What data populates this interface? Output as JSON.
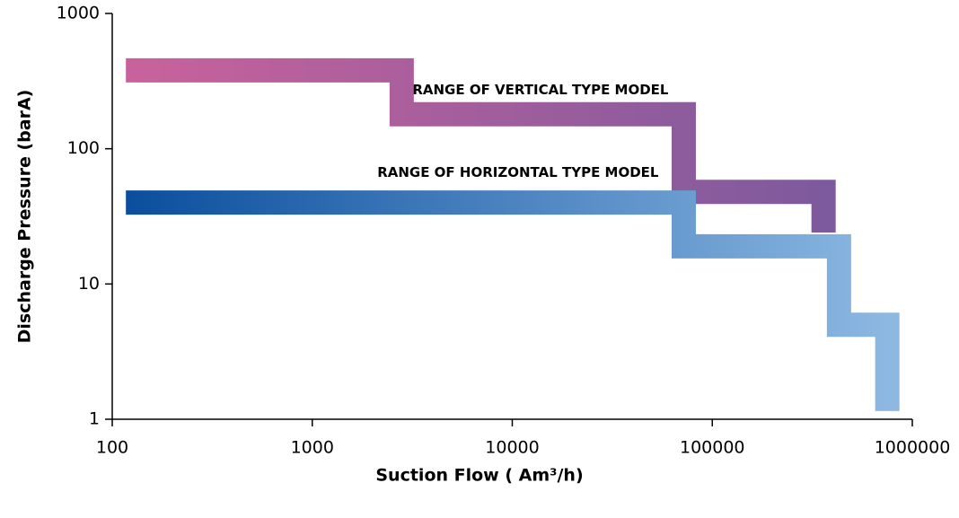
{
  "chart_data": {
    "type": "line",
    "x_label": "Suction Flow ( Am³/h)",
    "y_label": "Discharge Pressure (barA)",
    "xscale": "log",
    "yscale": "log",
    "xlim": [
      100,
      1000000
    ],
    "ylim": [
      1,
      1000
    ],
    "xticks": [
      100,
      1000,
      10000,
      100000,
      1000000
    ],
    "yticks": [
      1,
      10,
      100,
      1000
    ],
    "series": [
      {
        "name": "RANGE OF VERTICAL TYPE MODEL",
        "gradient": [
          "#c9629c",
          "#7d5a9d"
        ],
        "x": [
          117,
          2800,
          2800,
          72000,
          72000,
          360000,
          360000
        ],
        "values": [
          380,
          380,
          180,
          180,
          48,
          48,
          24
        ]
      },
      {
        "name": "RANGE OF HORIZONTAL TYPE MODEL",
        "gradient": [
          "#0a4e9d",
          "#8cb8e2"
        ],
        "x": [
          117,
          72000,
          72000,
          430000,
          430000,
          750000,
          750000
        ],
        "values": [
          40,
          40,
          19,
          19,
          5,
          5,
          1.15
        ]
      }
    ]
  }
}
